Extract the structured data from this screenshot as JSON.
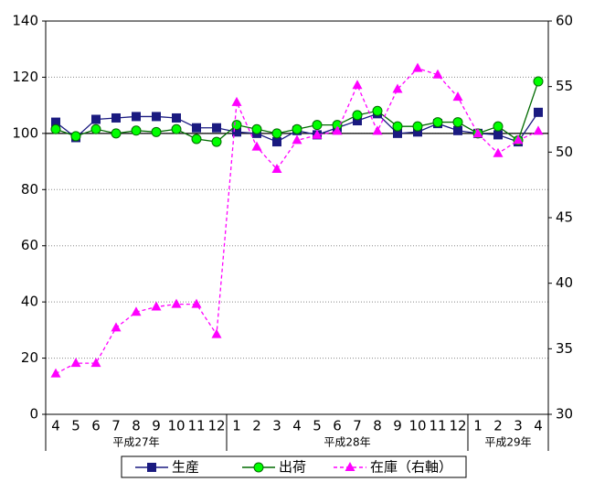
{
  "chart_data": {
    "type": "line",
    "categories": [
      "4",
      "5",
      "6",
      "7",
      "8",
      "9",
      "10",
      "11",
      "12",
      "1",
      "2",
      "3",
      "4",
      "5",
      "6",
      "7",
      "8",
      "9",
      "10",
      "11",
      "12",
      "1",
      "2",
      "3",
      "4"
    ],
    "groups": [
      {
        "label": "平成27年",
        "count": 9
      },
      {
        "label": "平成28年",
        "count": 12
      },
      {
        "label": "平成29年",
        "count": 4
      }
    ],
    "series": [
      {
        "name": "生産",
        "color": "#1a1a80",
        "fill": "#1a1a80",
        "marker": "square",
        "dashed": false,
        "values": [
          104,
          98.5,
          105,
          105.5,
          106,
          106,
          105.5,
          102,
          102,
          100.5,
          100,
          97,
          101,
          99.5,
          102,
          104.5,
          107,
          100,
          100.5,
          103.5,
          101,
          100,
          99.5,
          97,
          107.5
        ]
      },
      {
        "name": "出荷",
        "color": "#006a00",
        "fill": "#00ff00",
        "marker": "circle",
        "dashed": false,
        "values": [
          101.5,
          99,
          101.5,
          100,
          101,
          100.5,
          101.5,
          98,
          97,
          103,
          101.5,
          100,
          101.5,
          103,
          103,
          106.5,
          108,
          102.5,
          102.5,
          104,
          104,
          100,
          102.5,
          97.5,
          118.5
        ]
      },
      {
        "name": "在庫（右軸）",
        "color": "#ff00ff",
        "fill": "#ff00ff",
        "marker": "triangle",
        "dashed": true,
        "axis": "y2",
        "values": [
          33.1,
          33.9,
          33.9,
          36.6,
          37.8,
          38.2,
          38.4,
          38.4,
          36.1,
          53.8,
          50.4,
          48.7,
          50.9,
          51.3,
          51.6,
          55.1,
          51.6,
          54.8,
          56.4,
          55.9,
          54.2,
          51.4,
          49.9,
          50.9,
          51.6
        ]
      }
    ],
    "ylim": [
      0,
      140
    ],
    "yticks": [
      0,
      20,
      40,
      60,
      80,
      100,
      120,
      140
    ],
    "y2lim": [
      30,
      60
    ],
    "y2ticks": [
      30,
      35,
      40,
      45,
      50,
      55,
      60
    ],
    "reference_line": 100,
    "grid": true
  }
}
